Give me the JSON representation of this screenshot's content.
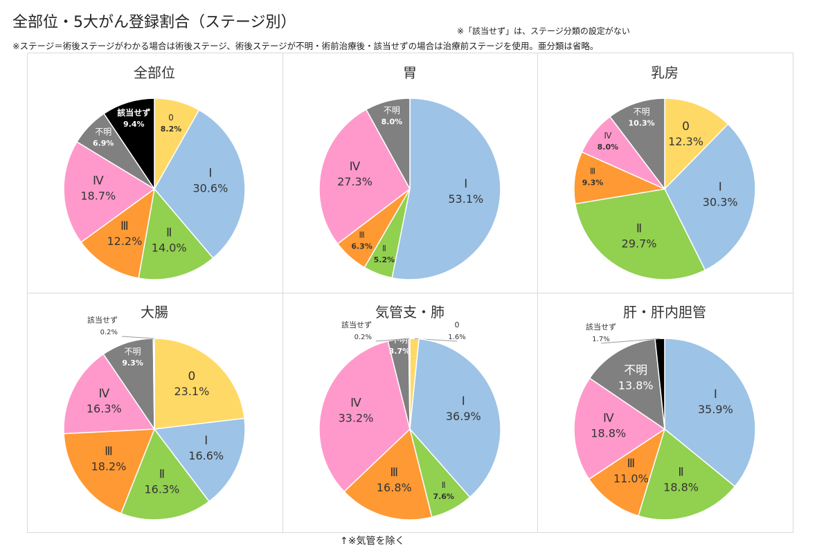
{
  "page": {
    "title": "全部位・5大がん登録割合（ステージ別）",
    "note_top_right": "※「該当せず」は、ステージ分類の設定がない",
    "note_stage": "※ステージ＝術後ステージがわかる場合は術後ステージ、術後ステージが不明・術前治療後・該当せずの場合は治療前ステージを使用。亜分類は省略。",
    "footer_note": "↑※気管を除く"
  },
  "colors": {
    "0": "#FFD966",
    "I": "#9DC3E6",
    "II": "#92D050",
    "III": "#FF9933",
    "IV": "#FF99CC",
    "unknown": "#808080",
    "na": "#000000"
  },
  "chart_data": [
    {
      "type": "pie",
      "title": "全部位",
      "slices": [
        {
          "key": "0",
          "label": "0",
          "value": 8.2,
          "value_label": "8.2%"
        },
        {
          "key": "I",
          "label": "Ⅰ",
          "value": 30.6,
          "value_label": "30.6%"
        },
        {
          "key": "II",
          "label": "Ⅱ",
          "value": 14.0,
          "value_label": "14.0%"
        },
        {
          "key": "III",
          "label": "Ⅲ",
          "value": 12.2,
          "value_label": "12.2%"
        },
        {
          "key": "IV",
          "label": "Ⅳ",
          "value": 18.7,
          "value_label": "18.7%"
        },
        {
          "key": "unknown",
          "label": "不明",
          "value": 6.9,
          "value_label": "6.9%"
        },
        {
          "key": "na",
          "label": "該当せず",
          "value": 9.4,
          "value_label": "9.4%"
        }
      ]
    },
    {
      "type": "pie",
      "title": "胃",
      "slices": [
        {
          "key": "I",
          "label": "Ⅰ",
          "value": 53.1,
          "value_label": "53.1%"
        },
        {
          "key": "II",
          "label": "Ⅱ",
          "value": 5.2,
          "value_label": "5.2%"
        },
        {
          "key": "III",
          "label": "Ⅲ",
          "value": 6.3,
          "value_label": "6.3%"
        },
        {
          "key": "IV",
          "label": "Ⅳ",
          "value": 27.3,
          "value_label": "27.3%"
        },
        {
          "key": "unknown",
          "label": "不明",
          "value": 8.0,
          "value_label": "8.0%"
        }
      ]
    },
    {
      "type": "pie",
      "title": "乳房",
      "slices": [
        {
          "key": "0",
          "label": "0",
          "value": 12.3,
          "value_label": "12.3%"
        },
        {
          "key": "I",
          "label": "Ⅰ",
          "value": 30.3,
          "value_label": "30.3%"
        },
        {
          "key": "II",
          "label": "Ⅱ",
          "value": 29.7,
          "value_label": "29.7%"
        },
        {
          "key": "III",
          "label": "Ⅲ",
          "value": 9.3,
          "value_label": "9.3%"
        },
        {
          "key": "IV",
          "label": "Ⅳ",
          "value": 8.0,
          "value_label": "8.0%"
        },
        {
          "key": "unknown",
          "label": "不明",
          "value": 10.3,
          "value_label": "10.3%"
        }
      ]
    },
    {
      "type": "pie",
      "title": "大腸",
      "slices": [
        {
          "key": "0",
          "label": "0",
          "value": 23.1,
          "value_label": "23.1%"
        },
        {
          "key": "I",
          "label": "Ⅰ",
          "value": 16.6,
          "value_label": "16.6%"
        },
        {
          "key": "II",
          "label": "Ⅱ",
          "value": 16.3,
          "value_label": "16.3%"
        },
        {
          "key": "III",
          "label": "Ⅲ",
          "value": 18.2,
          "value_label": "18.2%"
        },
        {
          "key": "IV",
          "label": "Ⅳ",
          "value": 16.3,
          "value_label": "16.3%"
        },
        {
          "key": "unknown",
          "label": "不明",
          "value": 9.3,
          "value_label": "9.3%"
        },
        {
          "key": "na",
          "label": "該当せず",
          "value": 0.2,
          "value_label": "0.2%"
        }
      ]
    },
    {
      "type": "pie",
      "title": "気管支・肺",
      "slices": [
        {
          "key": "0",
          "label": "0",
          "value": 1.6,
          "value_label": "1.6%"
        },
        {
          "key": "I",
          "label": "Ⅰ",
          "value": 36.9,
          "value_label": "36.9%"
        },
        {
          "key": "II",
          "label": "Ⅱ",
          "value": 7.6,
          "value_label": "7.6%"
        },
        {
          "key": "III",
          "label": "Ⅲ",
          "value": 16.8,
          "value_label": "16.8%"
        },
        {
          "key": "IV",
          "label": "Ⅳ",
          "value": 33.2,
          "value_label": "33.2%"
        },
        {
          "key": "unknown",
          "label": "不明",
          "value": 3.7,
          "value_label": "3.7%"
        },
        {
          "key": "na",
          "label": "該当せず",
          "value": 0.2,
          "value_label": "0.2%"
        }
      ]
    },
    {
      "type": "pie",
      "title": "肝・肝内胆管",
      "slices": [
        {
          "key": "I",
          "label": "Ⅰ",
          "value": 35.9,
          "value_label": "35.9%"
        },
        {
          "key": "II",
          "label": "Ⅱ",
          "value": 18.8,
          "value_label": "18.8%"
        },
        {
          "key": "III",
          "label": "Ⅲ",
          "value": 11.0,
          "value_label": "11.0%"
        },
        {
          "key": "IV",
          "label": "Ⅳ",
          "value": 18.8,
          "value_label": "18.8%"
        },
        {
          "key": "unknown",
          "label": "不明",
          "value": 13.8,
          "value_label": "13.8%"
        },
        {
          "key": "na",
          "label": "該当せず",
          "value": 1.7,
          "value_label": "1.7%"
        }
      ]
    }
  ]
}
